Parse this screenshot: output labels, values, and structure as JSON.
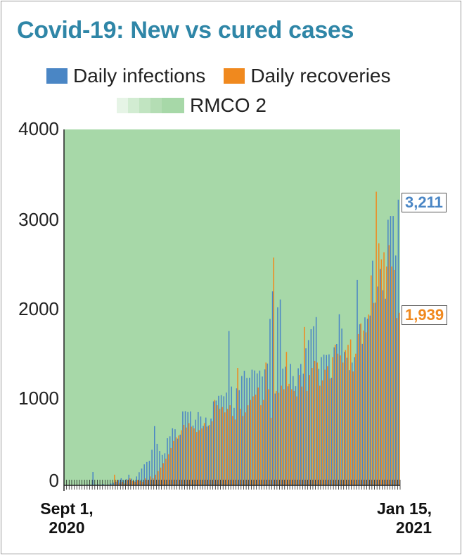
{
  "chart_data": {
    "type": "bar",
    "title": "Covid-19: New vs cured cases",
    "xlabel": "",
    "ylabel": "",
    "ylim": [
      0,
      4000
    ],
    "yticks": [
      "4000",
      "3000",
      "2000",
      "1000",
      "0"
    ],
    "x_start_label": "Sept 1, 2020",
    "x_end_label": "Jan 15, 2021",
    "legend": [
      "Daily infections",
      "Daily recoveries",
      "RMCO 2"
    ],
    "legend_position": "top",
    "shaded_region": "RMCO 2",
    "colors": {
      "infections": "#4a86c5",
      "recoveries": "#f0891e",
      "rmco": "#a7d8a8",
      "title": "#2f86a7"
    },
    "annotations": {
      "last_infections": "3,211",
      "last_recoveries": "1,939"
    },
    "series": [
      {
        "name": "Daily infections",
        "values": [
          5,
          3,
          2,
          4,
          6,
          3,
          8,
          5,
          4,
          10,
          8,
          150,
          10,
          12,
          8,
          15,
          6,
          10,
          20,
          30,
          40,
          62,
          80,
          58,
          70,
          120,
          75,
          48,
          100,
          148,
          189,
          236,
          262,
          276,
          400,
          666,
          467,
          387,
          342,
          361,
          530,
          551,
          641,
          631,
          525,
          570,
          831,
          834,
          824,
          831,
          672,
          738,
          823,
          774,
          668,
          762,
          671,
          751,
          944,
          953,
          1006,
          1014,
          1001,
          1043,
          1734,
          1110,
          871,
          1090,
          1070,
          1229,
          1288,
          1208,
          1210,
          1300,
          1291,
          1258,
          1290,
          1223,
          1303,
          1369,
          1871,
          2180,
          1032,
          2001,
          2089,
          1312,
          1333,
          1113,
          1365,
          1228,
          1114,
          1316,
          1364,
          1255,
          1540,
          1633,
          1755,
          1788,
          1891,
          1309,
          1441,
          1469,
          1465,
          1472,
          1210,
          1551,
          1589,
          1923,
          1762,
          1500,
          1434,
          1295,
          1380,
          1440,
          2309,
          1810,
          1590,
          1888,
          1873,
          1908,
          2525,
          2053,
          2234,
          2432,
          2193,
          2097,
          2985,
          3027,
          3027,
          2583,
          3211
        ]
      },
      {
        "name": "Daily recoveries",
        "values": [
          0,
          0,
          0,
          0,
          0,
          0,
          0,
          0,
          0,
          0,
          0,
          0,
          0,
          0,
          0,
          0,
          0,
          0,
          0,
          120,
          60,
          30,
          40,
          20,
          60,
          80,
          50,
          40,
          60,
          50,
          40,
          80,
          60,
          100,
          80,
          120,
          160,
          200,
          250,
          300,
          350,
          420,
          500,
          540,
          560,
          620,
          680,
          650,
          700,
          660,
          640,
          600,
          620,
          640,
          700,
          660,
          680,
          720,
          960,
          900,
          860,
          880,
          820,
          860,
          900,
          780,
          740,
          1320,
          860,
          780,
          820,
          900,
          960,
          1000,
          1020,
          1100,
          900,
          960,
          1380,
          1080,
          760,
          2560,
          1060,
          1040,
          1120,
          1080,
          1500,
          1140,
          1080,
          1060,
          1000,
          1240,
          1110,
          1780,
          1060,
          1240,
          1320,
          1400,
          1380,
          1120,
          1180,
          1300,
          1340,
          1200,
          1440,
          1580,
          1480,
          1460,
          1380,
          1520,
          1580,
          1640,
          1280,
          1480,
          1700,
          1820,
          1740,
          1720,
          1920,
          2360,
          2050,
          3300,
          2720,
          2540,
          2620,
          2460,
          2700,
          2460,
          2420,
          1880,
          1939
        ]
      }
    ]
  }
}
